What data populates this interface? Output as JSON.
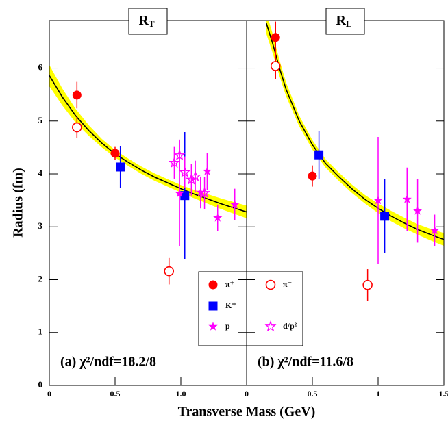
{
  "chart_data": [
    {
      "type": "scatter",
      "panel_label": "R",
      "panel_sub": "T",
      "annotation": "(a) χ²/ndf=18.2/8",
      "y_label": "Radius (fm)",
      "x_label": "Transverse Mass (GeV)",
      "xlim": [
        0,
        1.5
      ],
      "ylim": [
        0,
        6.9
      ],
      "xticks": [
        0,
        0.5,
        {
          "value": 1,
          "label": "1.0"
        }
      ],
      "yticks": [
        0,
        1,
        2,
        3,
        4,
        5,
        6
      ],
      "series": [
        {
          "name": "π⁺",
          "color": "#ff0000",
          "marker": "circle",
          "x": [
            0.21,
            0.5
          ],
          "values": [
            5.49,
            4.39
          ],
          "errors": [
            0.25,
            0.12
          ]
        },
        {
          "name": "π⁻",
          "color": "#ff0000",
          "marker": "open-circle",
          "x": [
            0.21,
            0.91
          ],
          "values": [
            4.88,
            2.16
          ],
          "errors": [
            0.2,
            0.25
          ]
        },
        {
          "name": "K⁺",
          "color": "#0000ff",
          "marker": "square",
          "x": [
            0.54,
            1.03
          ],
          "values": [
            4.13,
            3.59
          ],
          "errors": [
            0.4,
            1.2
          ]
        },
        {
          "name": "p",
          "color": "#ff00ff",
          "marker": "star",
          "x": [
            0.99,
            1.2,
            1.15,
            1.28,
            1.41
          ],
          "values": [
            3.63,
            4.05,
            3.65,
            3.17,
            3.42
          ],
          "errors": [
            1.0,
            0.35,
            0.3,
            0.25,
            0.3
          ]
        },
        {
          "name": "d/p²",
          "color": "#ff00ff",
          "marker": "open-star",
          "x": [
            0.95,
            0.99,
            1.03,
            1.08,
            1.11,
            1.18
          ],
          "values": [
            4.21,
            4.35,
            4.03,
            3.89,
            3.95,
            3.64
          ],
          "errors": [
            0.3,
            0.3,
            0.3,
            0.3,
            0.3,
            0.3
          ]
        }
      ],
      "fit": {
        "color": "#000000",
        "band_color": "#ffff00",
        "x": [
          0,
          0.1,
          0.2,
          0.3,
          0.4,
          0.5,
          0.6,
          0.7,
          0.8,
          0.9,
          1.0,
          1.1,
          1.2,
          1.3,
          1.4,
          1.5
        ],
        "values": [
          5.86,
          5.45,
          5.1,
          4.82,
          4.58,
          4.38,
          4.22,
          4.07,
          3.94,
          3.83,
          3.72,
          3.62,
          3.53,
          3.44,
          3.36,
          3.28
        ],
        "lower": [
          5.66,
          5.29,
          4.97,
          4.72,
          4.5,
          4.31,
          4.15,
          4.0,
          3.87,
          3.76,
          3.65,
          3.54,
          3.44,
          3.34,
          3.25,
          3.16
        ],
        "upper": [
          6.06,
          5.61,
          5.23,
          4.92,
          4.66,
          4.45,
          4.29,
          4.14,
          4.01,
          3.9,
          3.79,
          3.7,
          3.62,
          3.54,
          3.47,
          3.4
        ]
      }
    },
    {
      "type": "scatter",
      "panel_label": "R",
      "panel_sub": "L",
      "annotation": "(b) χ²/ndf=11.6/8",
      "xlim": [
        0,
        1.5
      ],
      "ylim": [
        0,
        6.9
      ],
      "xticks": [
        0,
        0.5,
        1,
        1.5
      ],
      "yticks": [
        0,
        1,
        2,
        3,
        4,
        5,
        6
      ],
      "series": [
        {
          "color": "#ff0000",
          "marker": "circle",
          "x": [
            0.22,
            0.5
          ],
          "values": [
            6.58,
            3.96
          ],
          "errors": [
            0.3,
            0.2
          ]
        },
        {
          "color": "#ff0000",
          "marker": "open-circle",
          "x": [
            0.22,
            0.92
          ],
          "values": [
            6.04,
            1.9
          ],
          "errors": [
            0.25,
            0.3
          ]
        },
        {
          "color": "#0000ff",
          "marker": "square",
          "x": [
            0.55,
            1.05
          ],
          "values": [
            4.36,
            3.2
          ],
          "errors": [
            0.45,
            0.7
          ]
        },
        {
          "color": "#ff00ff",
          "marker": "star",
          "x": [
            1.0,
            1.22,
            1.3,
            1.43
          ],
          "values": [
            3.5,
            3.52,
            3.3,
            2.93
          ],
          "errors": [
            1.2,
            0.6,
            0.6,
            0.3
          ]
        }
      ],
      "fit": {
        "color": "#000000",
        "band_color": "#ffff00",
        "x": [
          0.15,
          0.2,
          0.25,
          0.3,
          0.4,
          0.5,
          0.6,
          0.7,
          0.8,
          0.9,
          1.0,
          1.1,
          1.2,
          1.3,
          1.4,
          1.5
        ],
        "values": [
          6.85,
          6.45,
          6.0,
          5.6,
          5.0,
          4.55,
          4.2,
          3.95,
          3.72,
          3.52,
          3.35,
          3.2,
          3.07,
          2.95,
          2.85,
          2.76
        ],
        "lower": [
          6.65,
          6.27,
          5.85,
          5.47,
          4.9,
          4.46,
          4.12,
          3.87,
          3.64,
          3.44,
          3.26,
          3.1,
          2.97,
          2.85,
          2.74,
          2.64
        ],
        "upper": [
          7.05,
          6.63,
          6.15,
          5.73,
          5.1,
          4.64,
          4.28,
          4.03,
          3.8,
          3.6,
          3.44,
          3.3,
          3.17,
          3.05,
          2.96,
          2.88
        ]
      }
    }
  ]
}
